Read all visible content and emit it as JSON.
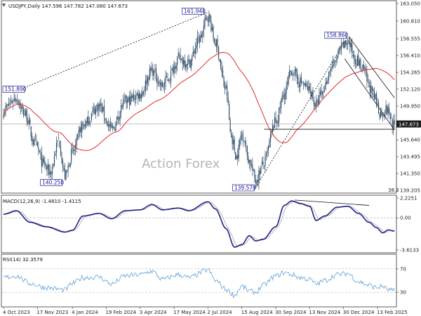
{
  "header": {
    "symbol": "USDJPY,Daily",
    "ohlc": "147.596 147.782 147.080 147.673",
    "macd": "MACD(12,26,9) -1.4810 -1.4115",
    "rsi": "RSI(14) 32.3579"
  },
  "watermark": "Action Forex",
  "chart_data": {
    "type": "candlestick",
    "x_axis": {
      "tick_labels": [
        "4 Oct 2023",
        "17 Nov 2023",
        "4 Jan 2024",
        "19 Feb 2024",
        "3 Apr 2024",
        "17 May 2024",
        "2 Jul 2024",
        "15 Aug 2024",
        "30 Sep 2024",
        "13 Nov 2024",
        "30 Dec 2024",
        "13 Feb 2025"
      ],
      "tick_index": [
        0,
        32,
        65,
        97,
        129,
        161,
        193,
        225,
        257,
        289,
        321,
        353
      ]
    },
    "price_panel": {
      "y_ticks": [
        139.205,
        141.35,
        143.495,
        145.64,
        147.673,
        149.95,
        152.12,
        154.265,
        156.41,
        158.555,
        160.81,
        163.05
      ],
      "ylim": [
        139.205,
        163.05
      ],
      "last_price": 147.673,
      "price_labels": [
        {
          "text": "151.890",
          "value": 151.89,
          "bar": 12
        },
        {
          "text": "161.940",
          "value": 161.94,
          "bar": 193
        },
        {
          "text": "140.250",
          "value": 140.25,
          "bar": 58
        },
        {
          "text": "139.570",
          "value": 139.57,
          "bar": 238
        },
        {
          "text": "158.860",
          "value": 158.86,
          "bar": 325
        }
      ],
      "level_annotation": "38.2",
      "anchors": [
        {
          "i": 0,
          "v": 149.5
        },
        {
          "i": 12,
          "v": 151.0
        },
        {
          "i": 20,
          "v": 149.0
        },
        {
          "i": 30,
          "v": 145.0
        },
        {
          "i": 38,
          "v": 142.5
        },
        {
          "i": 44,
          "v": 141.5
        },
        {
          "i": 52,
          "v": 145.5
        },
        {
          "i": 58,
          "v": 141.0
        },
        {
          "i": 65,
          "v": 144.0
        },
        {
          "i": 75,
          "v": 147.5
        },
        {
          "i": 90,
          "v": 150.0
        },
        {
          "i": 102,
          "v": 147.0
        },
        {
          "i": 115,
          "v": 150.5
        },
        {
          "i": 129,
          "v": 151.5
        },
        {
          "i": 140,
          "v": 154.5
        },
        {
          "i": 150,
          "v": 152.5
        },
        {
          "i": 155,
          "v": 153.5
        },
        {
          "i": 165,
          "v": 156.0
        },
        {
          "i": 175,
          "v": 155.5
        },
        {
          "i": 185,
          "v": 158.5
        },
        {
          "i": 193,
          "v": 161.5
        },
        {
          "i": 200,
          "v": 158.0
        },
        {
          "i": 210,
          "v": 152.0
        },
        {
          "i": 215,
          "v": 146.0
        },
        {
          "i": 220,
          "v": 143.5
        },
        {
          "i": 225,
          "v": 146.5
        },
        {
          "i": 232,
          "v": 143.0
        },
        {
          "i": 238,
          "v": 140.5
        },
        {
          "i": 245,
          "v": 142.5
        },
        {
          "i": 257,
          "v": 148.0
        },
        {
          "i": 265,
          "v": 151.5
        },
        {
          "i": 272,
          "v": 154.5
        },
        {
          "i": 280,
          "v": 153.0
        },
        {
          "i": 289,
          "v": 152.0
        },
        {
          "i": 295,
          "v": 150.0
        },
        {
          "i": 300,
          "v": 151.5
        },
        {
          "i": 310,
          "v": 155.0
        },
        {
          "i": 320,
          "v": 157.5
        },
        {
          "i": 325,
          "v": 158.2
        },
        {
          "i": 332,
          "v": 156.0
        },
        {
          "i": 340,
          "v": 154.5
        },
        {
          "i": 345,
          "v": 152.5
        },
        {
          "i": 350,
          "v": 151.0
        },
        {
          "i": 356,
          "v": 149.0
        },
        {
          "i": 362,
          "v": 149.5
        },
        {
          "i": 368,
          "v": 147.67
        }
      ]
    },
    "macd_panel": {
      "y_ticks": [
        2.2251,
        0.0,
        -3.6133
      ],
      "ylim": [
        -3.6133,
        2.2251
      ],
      "macd_anchors": [
        {
          "i": 0,
          "v": 0.4
        },
        {
          "i": 12,
          "v": 0.8
        },
        {
          "i": 25,
          "v": -0.5
        },
        {
          "i": 40,
          "v": -1.0
        },
        {
          "i": 58,
          "v": -1.6
        },
        {
          "i": 65,
          "v": -1.4
        },
        {
          "i": 75,
          "v": 0.2
        },
        {
          "i": 90,
          "v": 0.5
        },
        {
          "i": 102,
          "v": -0.1
        },
        {
          "i": 115,
          "v": 0.8
        },
        {
          "i": 129,
          "v": 0.9
        },
        {
          "i": 140,
          "v": 1.5
        },
        {
          "i": 150,
          "v": 0.9
        },
        {
          "i": 165,
          "v": 1.1
        },
        {
          "i": 175,
          "v": 0.8
        },
        {
          "i": 193,
          "v": 1.8
        },
        {
          "i": 200,
          "v": 1.0
        },
        {
          "i": 210,
          "v": -1.2
        },
        {
          "i": 218,
          "v": -3.3
        },
        {
          "i": 225,
          "v": -3.0
        },
        {
          "i": 232,
          "v": -2.0
        },
        {
          "i": 238,
          "v": -2.6
        },
        {
          "i": 245,
          "v": -2.4
        },
        {
          "i": 257,
          "v": -1.0
        },
        {
          "i": 265,
          "v": 1.4
        },
        {
          "i": 272,
          "v": 1.9
        },
        {
          "i": 280,
          "v": 1.6
        },
        {
          "i": 289,
          "v": 1.3
        },
        {
          "i": 295,
          "v": -0.3
        },
        {
          "i": 303,
          "v": 0.2
        },
        {
          "i": 315,
          "v": 1.2
        },
        {
          "i": 325,
          "v": 1.3
        },
        {
          "i": 335,
          "v": 0.5
        },
        {
          "i": 345,
          "v": -0.5
        },
        {
          "i": 352,
          "v": -1.1
        },
        {
          "i": 358,
          "v": -1.7
        },
        {
          "i": 363,
          "v": -1.35
        },
        {
          "i": 368,
          "v": -1.48
        }
      ],
      "signal_lag": 5,
      "divergence_line": {
        "i1": 275,
        "v1": 2.0,
        "i2": 345,
        "v2": 1.4
      }
    },
    "rsi_panel": {
      "y_ticks": [
        70,
        30
      ],
      "ylim": [
        5,
        95
      ],
      "last_value": 32.3579,
      "anchors": [
        {
          "i": 0,
          "v": 55
        },
        {
          "i": 12,
          "v": 58
        },
        {
          "i": 25,
          "v": 45
        },
        {
          "i": 40,
          "v": 38
        },
        {
          "i": 58,
          "v": 34
        },
        {
          "i": 65,
          "v": 45
        },
        {
          "i": 75,
          "v": 55
        },
        {
          "i": 90,
          "v": 56
        },
        {
          "i": 102,
          "v": 44
        },
        {
          "i": 115,
          "v": 58
        },
        {
          "i": 129,
          "v": 60
        },
        {
          "i": 140,
          "v": 66
        },
        {
          "i": 150,
          "v": 52
        },
        {
          "i": 165,
          "v": 60
        },
        {
          "i": 175,
          "v": 55
        },
        {
          "i": 193,
          "v": 68
        },
        {
          "i": 200,
          "v": 50
        },
        {
          "i": 210,
          "v": 35
        },
        {
          "i": 218,
          "v": 25
        },
        {
          "i": 225,
          "v": 40
        },
        {
          "i": 232,
          "v": 32
        },
        {
          "i": 238,
          "v": 30
        },
        {
          "i": 245,
          "v": 42
        },
        {
          "i": 257,
          "v": 58
        },
        {
          "i": 265,
          "v": 64
        },
        {
          "i": 272,
          "v": 60
        },
        {
          "i": 280,
          "v": 55
        },
        {
          "i": 289,
          "v": 52
        },
        {
          "i": 295,
          "v": 44
        },
        {
          "i": 303,
          "v": 50
        },
        {
          "i": 315,
          "v": 60
        },
        {
          "i": 325,
          "v": 62
        },
        {
          "i": 335,
          "v": 48
        },
        {
          "i": 345,
          "v": 42
        },
        {
          "i": 352,
          "v": 38
        },
        {
          "i": 358,
          "v": 40
        },
        {
          "i": 363,
          "v": 34
        },
        {
          "i": 368,
          "v": 32.36
        }
      ]
    },
    "colors": {
      "candle": "#334f6b",
      "ma": "#e32a2a",
      "macd_line": "#1f1f8c",
      "signal_line": "#b6b6b6",
      "rsi_line": "#5f9fd6",
      "trendline": "#111111",
      "label_border": "#3a3aa8",
      "label_text": "#1a1a8c"
    }
  }
}
